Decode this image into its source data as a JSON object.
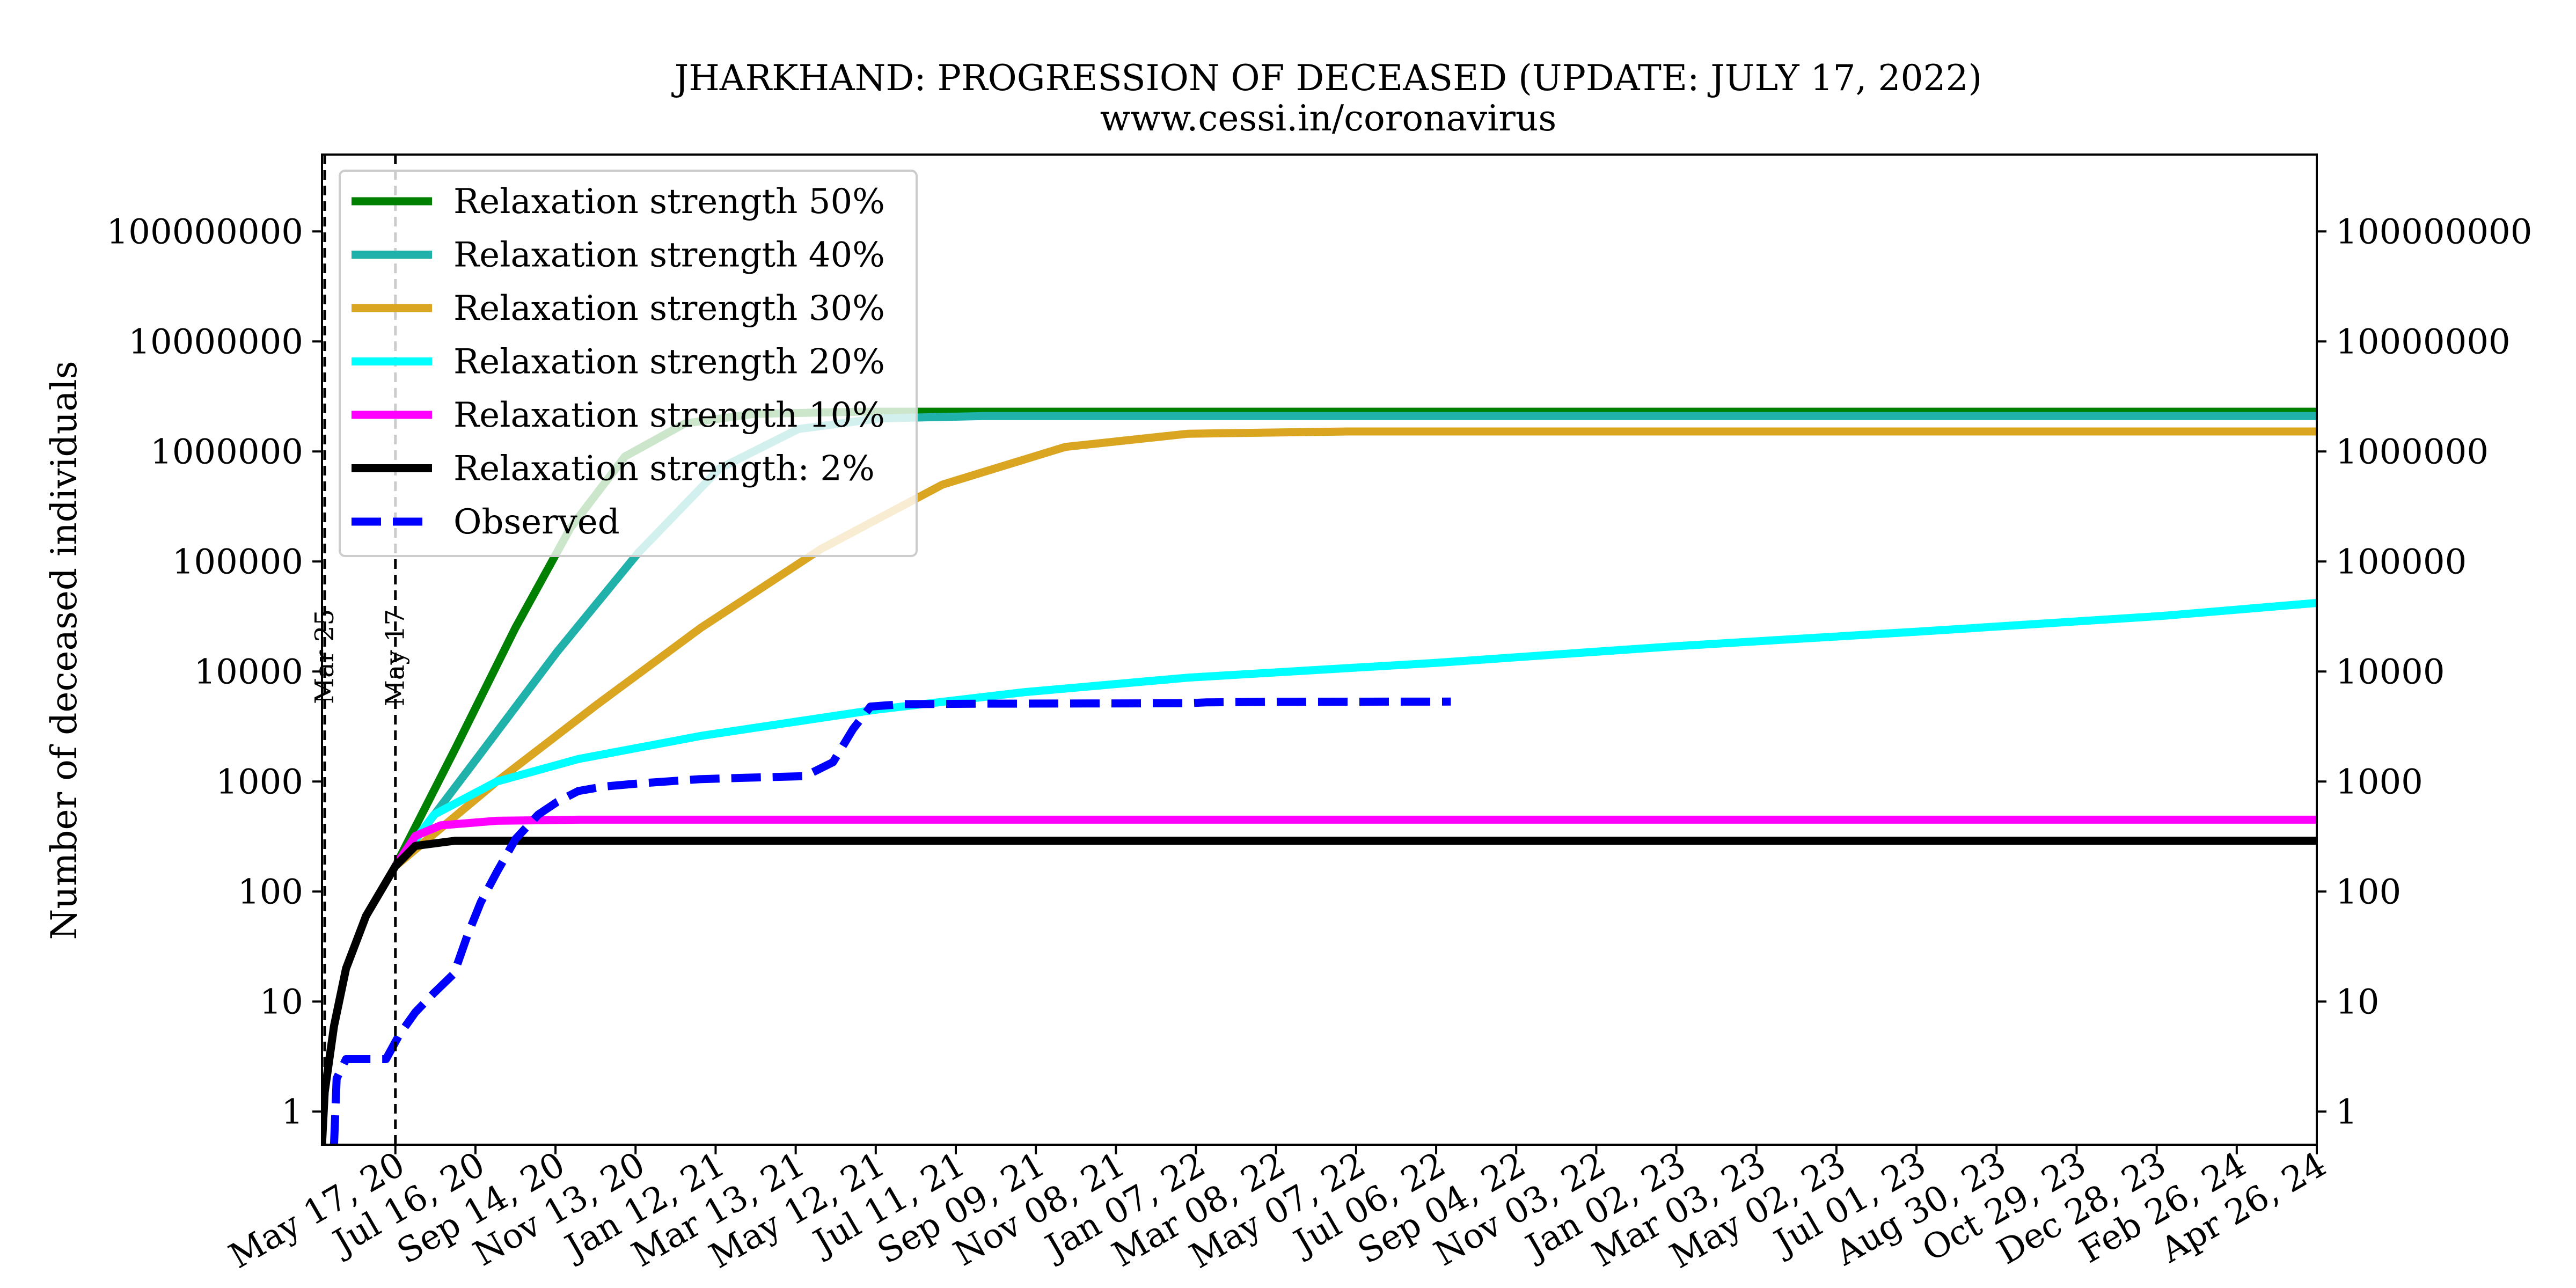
{
  "chart_data": {
    "type": "line",
    "title": "JHARKHAND: PROGRESSION OF DECEASED (UPDATE: JULY 17, 2022)",
    "subtitle": "www.cessi.in/coronavirus",
    "ylabel": "Number of deceased individuals",
    "xlabel": "",
    "y_scale": "log",
    "ylim": [
      0.5,
      500000000
    ],
    "xlim": [
      "2020-03-23",
      "2024-04-26"
    ],
    "y_ticks": [
      1,
      10,
      100,
      1000,
      10000,
      100000,
      1000000,
      10000000,
      100000000
    ],
    "y_tick_labels": [
      "1",
      "10",
      "100",
      "1000",
      "10000",
      "100000",
      "1000000",
      "10000000",
      "100000000"
    ],
    "x_ticks": [
      "2020-05-17",
      "2020-07-16",
      "2020-09-14",
      "2020-11-13",
      "2021-01-12",
      "2021-03-13",
      "2021-05-12",
      "2021-07-11",
      "2021-09-09",
      "2021-11-08",
      "2022-01-07",
      "2022-03-08",
      "2022-05-07",
      "2022-07-06",
      "2022-09-04",
      "2022-11-03",
      "2023-01-02",
      "2023-03-03",
      "2023-05-02",
      "2023-07-01",
      "2023-08-30",
      "2023-10-29",
      "2023-12-28",
      "2024-02-26",
      "2024-04-26"
    ],
    "x_tick_labels": [
      "May 17, 20",
      "Jul 16, 20",
      "Sep 14, 20",
      "Nov 13, 20",
      "Jan 12, 21",
      "Mar 13, 21",
      "May 12, 21",
      "Jul 11, 21",
      "Sep 09, 21",
      "Nov 08, 21",
      "Jan 07, 22",
      "Mar 08, 22",
      "May 07, 22",
      "Jul 06, 22",
      "Sep 04, 22",
      "Nov 03, 22",
      "Jan 02, 23",
      "Mar 03, 23",
      "May 02, 23",
      "Jul 01, 23",
      "Aug 30, 23",
      "Oct 29, 23",
      "Dec 28, 23",
      "Feb 26, 24",
      "Apr 26, 24"
    ],
    "vlines": [
      {
        "x": "2020-03-25",
        "label": "Mar 25"
      },
      {
        "x": "2020-05-17",
        "label": "May 17"
      }
    ],
    "legend_position": "top-left",
    "grid": false,
    "series": [
      {
        "name": "Relaxation strength 50%",
        "color": "#008000",
        "style": "solid",
        "points": [
          [
            "2020-05-17",
            170
          ],
          [
            "2020-07-01",
            2000
          ],
          [
            "2020-08-15",
            25000
          ],
          [
            "2020-09-25",
            200000
          ],
          [
            "2020-11-05",
            900000
          ],
          [
            "2020-12-20",
            1800000
          ],
          [
            "2021-02-10",
            2200000
          ],
          [
            "2021-05-01",
            2300000
          ],
          [
            "2024-04-26",
            2300000
          ]
        ]
      },
      {
        "name": "Relaxation strength 40%",
        "color": "#20B2AA",
        "style": "solid",
        "points": [
          [
            "2020-05-17",
            170
          ],
          [
            "2020-07-15",
            1500
          ],
          [
            "2020-09-15",
            15000
          ],
          [
            "2020-11-15",
            120000
          ],
          [
            "2021-01-15",
            700000
          ],
          [
            "2021-03-15",
            1600000
          ],
          [
            "2021-05-15",
            2000000
          ],
          [
            "2021-08-01",
            2100000
          ],
          [
            "2024-04-26",
            2100000
          ]
        ]
      },
      {
        "name": "Relaxation strength 30%",
        "color": "#DAA520",
        "style": "solid",
        "points": [
          [
            "2020-05-17",
            170
          ],
          [
            "2020-08-01",
            1000
          ],
          [
            "2020-10-15",
            5000
          ],
          [
            "2021-01-01",
            25000
          ],
          [
            "2021-04-01",
            130000
          ],
          [
            "2021-07-01",
            500000
          ],
          [
            "2021-10-01",
            1100000
          ],
          [
            "2022-01-01",
            1450000
          ],
          [
            "2022-05-01",
            1520000
          ],
          [
            "2024-04-26",
            1520000
          ]
        ]
      },
      {
        "name": "Relaxation strength 20%",
        "color": "#00FFFF",
        "style": "solid",
        "points": [
          [
            "2020-05-17",
            170
          ],
          [
            "2020-06-15",
            500
          ],
          [
            "2020-08-01",
            1000
          ],
          [
            "2020-10-01",
            1600
          ],
          [
            "2021-01-01",
            2600
          ],
          [
            "2021-05-12",
            4500
          ],
          [
            "2021-09-01",
            6500
          ],
          [
            "2022-01-01",
            8800
          ],
          [
            "2022-07-06",
            12000
          ],
          [
            "2023-01-02",
            17000
          ],
          [
            "2023-07-01",
            23000
          ],
          [
            "2024-01-01",
            32000
          ],
          [
            "2024-04-26",
            42000
          ]
        ]
      },
      {
        "name": "Relaxation strength 10%",
        "color": "#FF00FF",
        "style": "solid",
        "points": [
          [
            "2020-05-17",
            170
          ],
          [
            "2020-06-01",
            320
          ],
          [
            "2020-06-20",
            400
          ],
          [
            "2020-08-01",
            440
          ],
          [
            "2020-10-01",
            450
          ],
          [
            "2024-04-26",
            450
          ]
        ]
      },
      {
        "name": "Relaxation strength: 2%",
        "color": "#000000",
        "style": "solid",
        "points": [
          [
            "2020-03-23",
            0.5
          ],
          [
            "2020-03-25",
            1.5
          ],
          [
            "2020-04-01",
            6
          ],
          [
            "2020-04-10",
            20
          ],
          [
            "2020-04-25",
            60
          ],
          [
            "2020-05-17",
            170
          ],
          [
            "2020-06-01",
            260
          ],
          [
            "2020-07-01",
            290
          ],
          [
            "2024-04-26",
            290
          ]
        ]
      },
      {
        "name": "Observed",
        "color": "#0000FF",
        "style": "dashed",
        "points": [
          [
            "2020-04-01",
            0.5
          ],
          [
            "2020-04-03",
            2
          ],
          [
            "2020-04-10",
            3
          ],
          [
            "2020-05-10",
            3
          ],
          [
            "2020-05-20",
            5
          ],
          [
            "2020-06-01",
            8
          ],
          [
            "2020-06-15",
            12
          ],
          [
            "2020-06-30",
            18
          ],
          [
            "2020-07-10",
            40
          ],
          [
            "2020-07-20",
            80
          ],
          [
            "2020-08-01",
            150
          ],
          [
            "2020-08-15",
            300
          ],
          [
            "2020-09-01",
            500
          ],
          [
            "2020-09-15",
            650
          ],
          [
            "2020-10-01",
            820
          ],
          [
            "2020-10-20",
            900
          ],
          [
            "2020-11-15",
            960
          ],
          [
            "2020-12-31",
            1050
          ],
          [
            "2021-02-01",
            1080
          ],
          [
            "2021-03-20",
            1120
          ],
          [
            "2021-04-10",
            1500
          ],
          [
            "2021-04-25",
            3000
          ],
          [
            "2021-05-08",
            4800
          ],
          [
            "2021-06-01",
            5050
          ],
          [
            "2021-08-01",
            5100
          ],
          [
            "2021-12-31",
            5150
          ],
          [
            "2022-01-15",
            5250
          ],
          [
            "2022-03-01",
            5300
          ],
          [
            "2022-05-01",
            5320
          ],
          [
            "2022-07-17",
            5330
          ]
        ]
      }
    ]
  }
}
